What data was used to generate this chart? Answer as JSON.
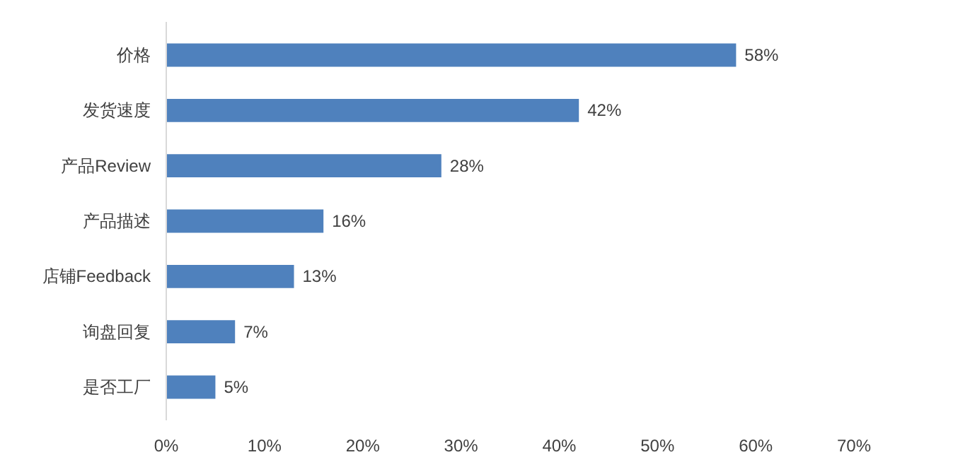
{
  "chart_data": {
    "type": "bar",
    "orientation": "horizontal",
    "categories": [
      "价格",
      "发货速度",
      "产品Review",
      "产品描述",
      "店铺Feedback",
      "询盘回复",
      "是否工厂"
    ],
    "values": [
      58,
      42,
      28,
      16,
      13,
      7,
      5
    ],
    "value_labels": [
      "58%",
      "42%",
      "28%",
      "16%",
      "13%",
      "7%",
      "5%"
    ],
    "color": "#4f81bd",
    "xlim": [
      0,
      70
    ],
    "xticks": [
      {
        "value": 0,
        "label": "0%"
      },
      {
        "value": 10,
        "label": "10%"
      },
      {
        "value": 20,
        "label": "20%"
      },
      {
        "value": 30,
        "label": "30%"
      },
      {
        "value": 40,
        "label": "40%"
      },
      {
        "value": 50,
        "label": "50%"
      },
      {
        "value": 60,
        "label": "60%"
      },
      {
        "value": 70,
        "label": "70%"
      }
    ],
    "grid": false
  }
}
